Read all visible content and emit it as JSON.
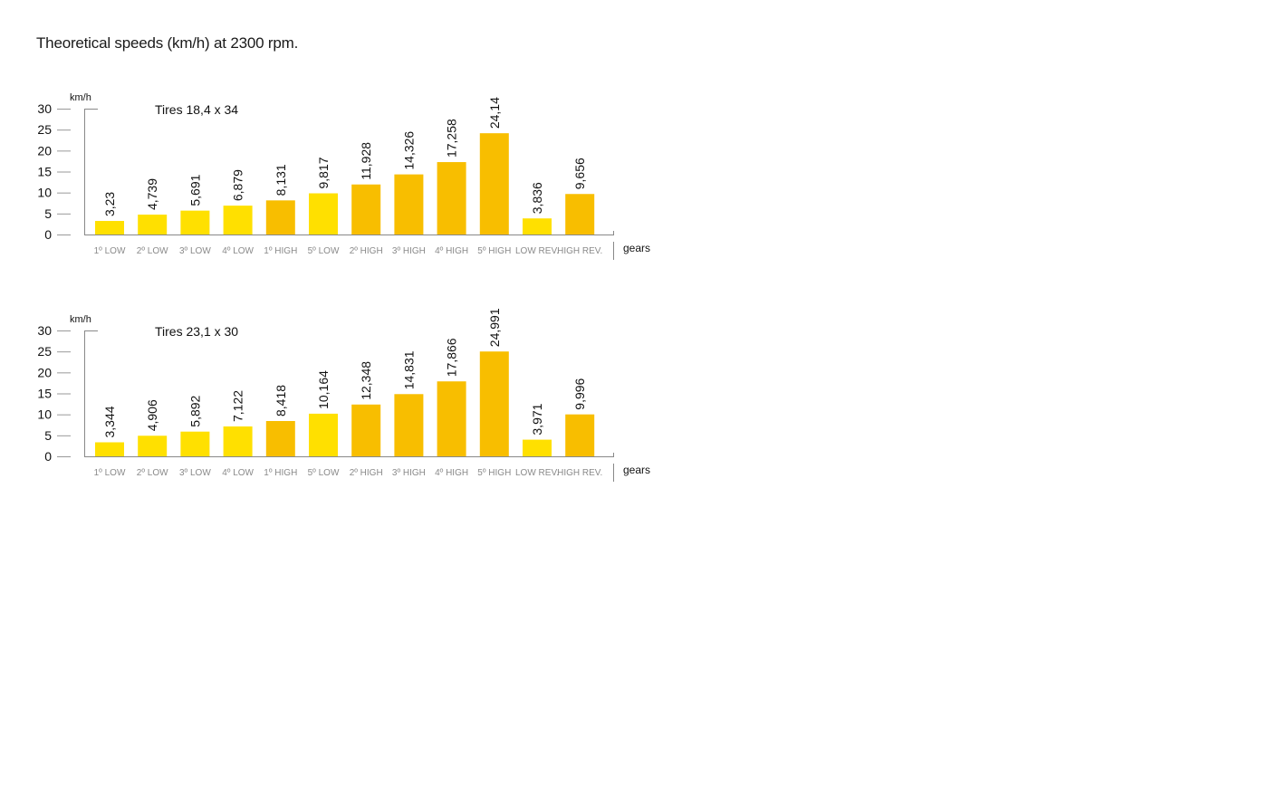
{
  "title": "Theoretical speeds (km/h) at 2300 rpm.",
  "colors": {
    "bar_light": "#FFE000",
    "bar_dark": "#F8BE00",
    "axis": "#888888",
    "text": "#111111",
    "gear_label": "#8a8a8a"
  },
  "chart_data": [
    {
      "type": "bar",
      "subtitle": "Tires 18,4 x 34",
      "ylabel": "km/h",
      "xlabel": "gears",
      "ylim": [
        0,
        30
      ],
      "yticks": [
        "0",
        "5",
        "10",
        "15",
        "20",
        "25",
        "30"
      ],
      "categories": [
        "1º LOW",
        "2º LOW",
        "3º LOW",
        "4º LOW",
        "1º HIGH",
        "5º LOW",
        "2º HIGH",
        "3º HIGH",
        "4º HIGH",
        "5º HIGH",
        "LOW REV.",
        "HIGH REV."
      ],
      "values": [
        3.23,
        4.739,
        5.691,
        6.879,
        8.131,
        9.817,
        11.928,
        14.326,
        17.258,
        24.14,
        3.836,
        9.656
      ],
      "data_labels": [
        "3,23",
        "4,739",
        "5,691",
        "6,879",
        "8,131",
        "9,817",
        "11,928",
        "14,326",
        "17,258",
        "24,14",
        "3,836",
        "9,656"
      ],
      "bar_shade": [
        "light",
        "light",
        "light",
        "light",
        "dark",
        "light",
        "dark",
        "dark",
        "dark",
        "dark",
        "light",
        "dark"
      ]
    },
    {
      "type": "bar",
      "subtitle": "Tires 23,1 x 30",
      "ylabel": "km/h",
      "xlabel": "gears",
      "ylim": [
        0,
        30
      ],
      "yticks": [
        "0",
        "5",
        "10",
        "15",
        "20",
        "25",
        "30"
      ],
      "categories": [
        "1º LOW",
        "2º LOW",
        "3º LOW",
        "4º LOW",
        "1º HIGH",
        "5º LOW",
        "2º HIGH",
        "3º HIGH",
        "4º HIGH",
        "5º HIGH",
        "LOW REV.",
        "HIGH REV."
      ],
      "values": [
        3.344,
        4.906,
        5.892,
        7.122,
        8.418,
        10.164,
        12.348,
        14.831,
        17.866,
        24.991,
        3.971,
        9.996
      ],
      "data_labels": [
        "3,344",
        "4,906",
        "5,892",
        "7,122",
        "8,418",
        "10,164",
        "12,348",
        "14,831",
        "17,866",
        "24,991",
        "3,971",
        "9,996"
      ],
      "bar_shade": [
        "light",
        "light",
        "light",
        "light",
        "dark",
        "light",
        "dark",
        "dark",
        "dark",
        "dark",
        "light",
        "dark"
      ]
    }
  ]
}
